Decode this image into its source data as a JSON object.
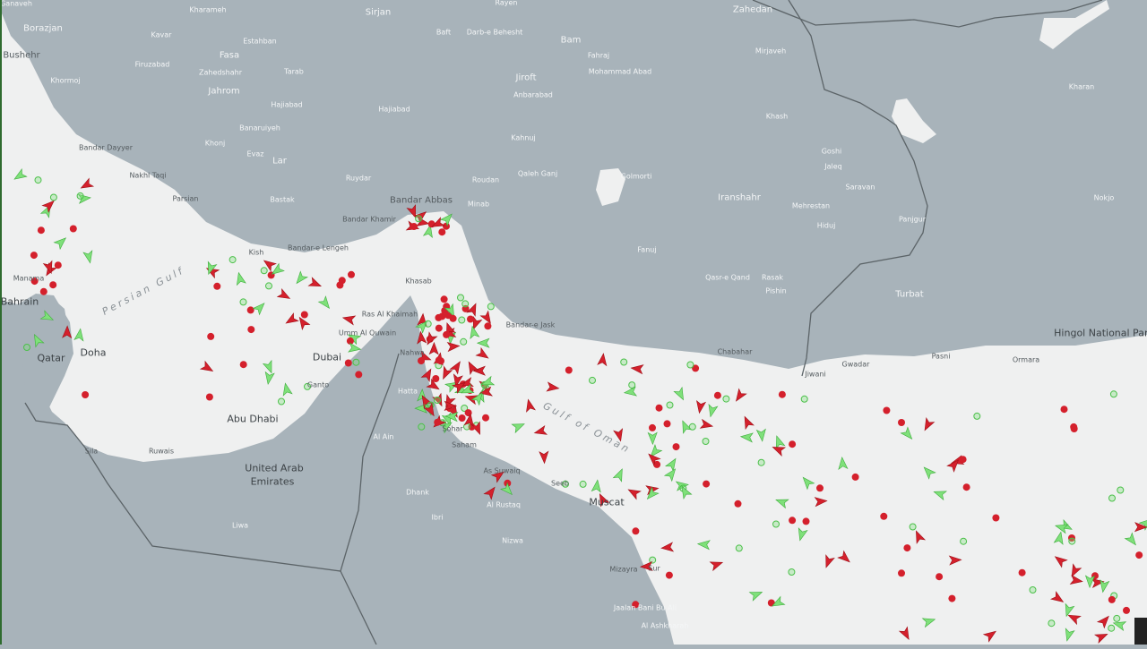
{
  "map": {
    "colors": {
      "land": "#a8b3ba",
      "water": "#eff0f0",
      "border": "#5c6468",
      "vessel_red": "#d4202c",
      "vessel_green": "#7fe07a"
    },
    "sea_labels": {
      "persian_gulf": "Persian Gulf",
      "gulf_of_oman": "Gulf of Oman"
    },
    "places": {
      "ganaveh": "Ganaveh",
      "kharameh": "Kharameh",
      "sirjan": "Sirjan",
      "rayen": "Rayen",
      "zahedan": "Zahedan",
      "borazjan": "Borazjan",
      "kavar": "Kavar",
      "estahban": "Estahban",
      "baft": "Baft",
      "darb_e_behesht": "Darb-e Behesht",
      "bam": "Bam",
      "bushehr": "Bushehr",
      "firuzabad": "Firuzabad",
      "fasa": "Fasa",
      "zahedshahr": "Zahedshahr",
      "tarab": "Tarab",
      "mirjaveh": "Mirjaveh",
      "fahraj": "Fahraj",
      "mohammad_abad": "Mohammad Abad",
      "khormoj": "Khormoj",
      "jahrom": "Jahrom",
      "jiroft": "Jiroft",
      "anbarabad": "Anbarabad",
      "hajiabad1": "Hajiabad",
      "hajiabad2": "Hajiabad",
      "kharan": "Kharan",
      "khash": "Khash",
      "banaruiyeh": "Banaruiyeh",
      "kahnuj": "Kahnuj",
      "khonj": "Khonj",
      "evaz": "Evaz",
      "lar": "Lar",
      "goshi": "Goshi",
      "bandar_dayyer": "Bandar Dayyer",
      "qaleh_ganj": "Qaleh Ganj",
      "jaleq": "Jaleq",
      "golmorti": "Golmorti",
      "nakhl_taqi": "Nakhl Taqi",
      "ruydar": "Ruydar",
      "roudan": "Roudan",
      "saravan": "Saravan",
      "iranshahr": "Iranshahr",
      "mehrestan": "Mehrestan",
      "nokjo": "Nokjo",
      "parsian": "Parsian",
      "bastak": "Bastak",
      "bandar_abbas": "Bandar Abbas",
      "minab": "Minab",
      "hiduj": "Hiduj",
      "panjgur": "Panjgur",
      "bandar_khamir": "Bandar Khamir",
      "kish": "Kish",
      "bandar_lengeh": "Bandar-e Lengeh",
      "fanuj": "Fanuj",
      "qasr_e_qand": "Qasr-e Qand",
      "rasak": "Rasak",
      "pishin": "Pishin",
      "manama": "Manama",
      "bahrain": "Bahrain",
      "khasab": "Khasab",
      "ras_al_khaimah": "Ras Al Khaimah",
      "bandar_e_jask": "Bandar-e Jask",
      "turbat": "Turbat",
      "umm_al_quwain": "Umm Al Quwain",
      "hingol": "Hingol National Park",
      "qatar": "Qatar",
      "doha": "Doha",
      "dubai": "Dubai",
      "nahwa": "Nahwa",
      "chabahar": "Chabahar",
      "jiwani": "Jiwani",
      "gwadar": "Gwadar",
      "pasni": "Pasni",
      "ormara": "Ormara",
      "ganto": "Ganto",
      "hatta": "Hatta",
      "abu_dhabi": "Abu Dhabi",
      "sohar": "Sohar",
      "saham": "Saham",
      "al_ain": "Al Ain",
      "sila": "Sila",
      "ruwais": "Ruwais",
      "as_suwaiq": "As Suwaiq",
      "uae1": "United Arab",
      "uae2": "Emirates",
      "seeb": "Seeb",
      "dhank": "Dhank",
      "muscat": "Muscat",
      "al_rustaq": "Al Rustaq",
      "ibri": "Ibri",
      "liwa": "Liwa",
      "nizwa": "Nizwa",
      "mizayra": "Mizayra",
      "sur": "Sur",
      "jaalan": "Jaalan Bani Bu Ali",
      "al_ashkharah": "Al Ashkharah"
    }
  }
}
